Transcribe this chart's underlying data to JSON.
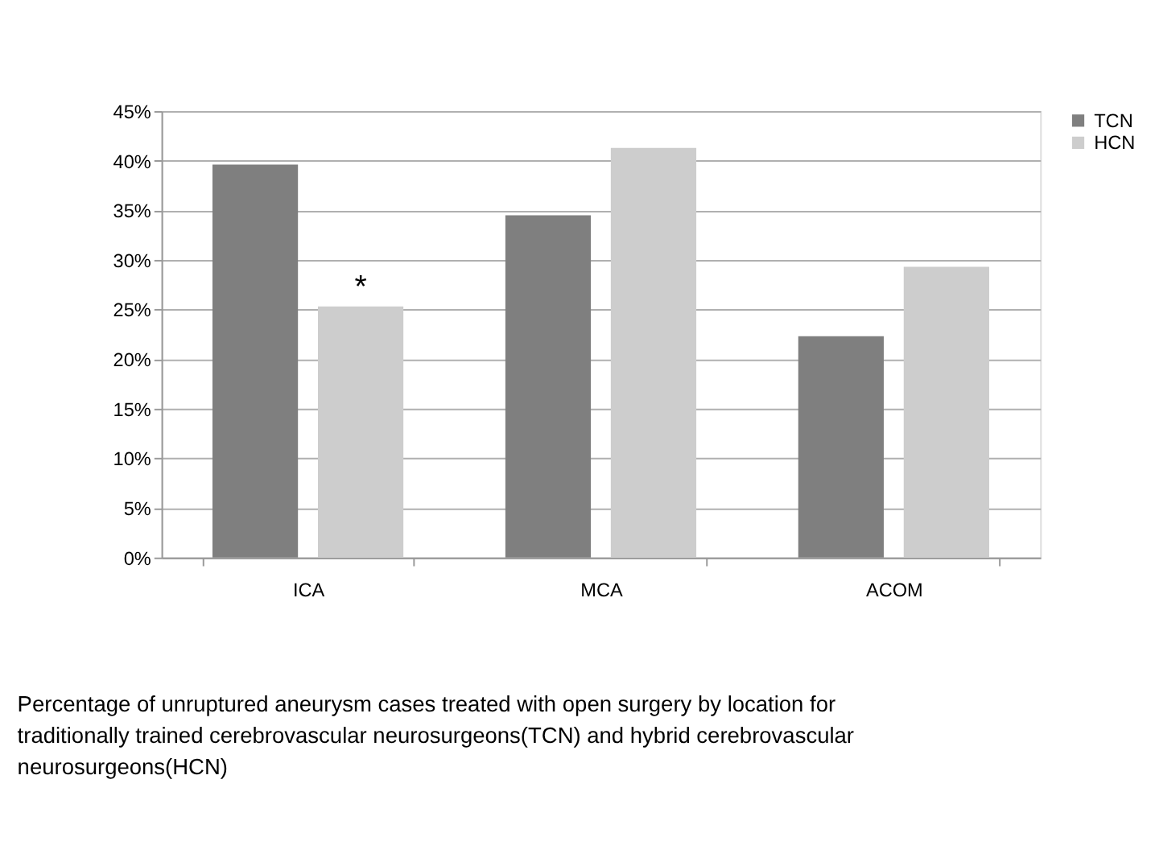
{
  "chart_data": {
    "type": "bar",
    "categories": [
      "ICA",
      "MCA",
      "ACOM"
    ],
    "series": [
      {
        "name": "TCN",
        "color": "#7f7f7f",
        "values": [
          39.6,
          34.5,
          22.3
        ]
      },
      {
        "name": "HCN",
        "color": "#cdcdcd",
        "values": [
          25.3,
          41.3,
          29.3
        ]
      }
    ],
    "ylim": [
      0,
      45
    ],
    "yticks": [
      {
        "value": 0,
        "label": "0%"
      },
      {
        "value": 5,
        "label": "5%"
      },
      {
        "value": 10,
        "label": "10%"
      },
      {
        "value": 15,
        "label": "15%"
      },
      {
        "value": 20,
        "label": "20%"
      },
      {
        "value": 25,
        "label": "25%"
      },
      {
        "value": 30,
        "label": "30%"
      },
      {
        "value": 35,
        "label": "35%"
      },
      {
        "value": 40,
        "label": "40%"
      },
      {
        "value": 45,
        "label": "45%"
      }
    ],
    "grid": "y",
    "legend": "right",
    "annotations": [
      {
        "text": "*",
        "y": 25.3
      },
      "Percentage of unruptured aneurysm cases treated with open surgery by location for traditionally trained cerebrovascular neurosurgeons(TCN) and hybrid cerebrovascular neurosurgeons(HCN)"
    ]
  }
}
